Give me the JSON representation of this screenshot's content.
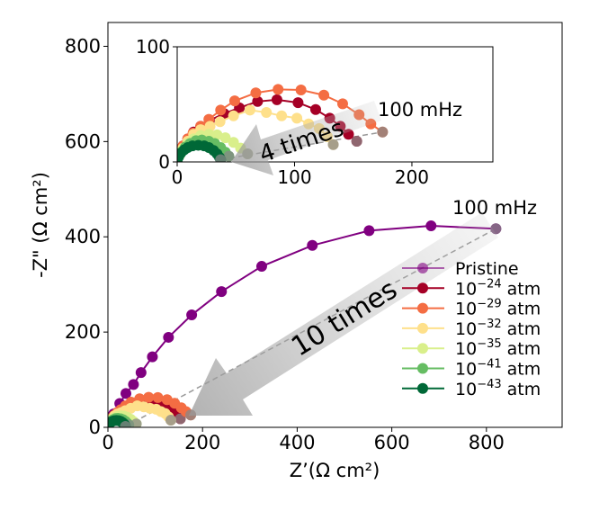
{
  "chart_data": [
    {
      "type": "line",
      "role": "main",
      "xlabel": "Z’(Ω cm²)",
      "ylabel": "-Z\" (Ω cm²)",
      "xlim": [
        0,
        960
      ],
      "ylim": [
        0,
        850
      ],
      "xticks": [
        "0",
        "200",
        "400",
        "600",
        "800"
      ],
      "yticks": [
        "0",
        "200",
        "400",
        "600",
        "800"
      ],
      "grid": false,
      "legend_placement": "lower-right",
      "annotations": {
        "frequency_label": "100 mHz",
        "arrow_label": "10 times"
      },
      "series_refs": [
        "pristine",
        "p24",
        "p29",
        "p32",
        "p35",
        "p41",
        "p43"
      ]
    },
    {
      "type": "line",
      "role": "inset",
      "xlim": [
        0,
        269
      ],
      "ylim": [
        0,
        100
      ],
      "xticks": [
        "0",
        "100",
        "200"
      ],
      "yticks": [
        "0",
        "100"
      ],
      "grid": false,
      "annotations": {
        "frequency_label": "100 mHz",
        "arrow_label": "4 times"
      },
      "series_refs": [
        "p24",
        "p29",
        "p32",
        "p35",
        "p41",
        "p43"
      ]
    }
  ],
  "series": {
    "pristine": {
      "name": "Pristine",
      "color": "#800080",
      "points": [
        [
          0,
          0
        ],
        [
          4,
          10
        ],
        [
          12,
          28
        ],
        [
          25,
          50
        ],
        [
          38,
          71
        ],
        [
          54,
          90
        ],
        [
          70,
          115
        ],
        [
          94,
          148
        ],
        [
          128,
          189
        ],
        [
          177,
          236
        ],
        [
          240,
          285
        ],
        [
          325,
          338
        ],
        [
          432,
          382
        ],
        [
          552,
          413
        ],
        [
          683,
          423
        ],
        [
          820,
          417
        ]
      ]
    },
    "p24": {
      "name": "10",
      "sup": "−24",
      "unit": " atm",
      "color": "#a50026",
      "points": [
        [
          0,
          0
        ],
        [
          2,
          7
        ],
        [
          5,
          14
        ],
        [
          9,
          20
        ],
        [
          14,
          26
        ],
        [
          20,
          31
        ],
        [
          27.5,
          36
        ],
        [
          40,
          42
        ],
        [
          53,
          47
        ],
        [
          68.5,
          52.5
        ],
        [
          85,
          54
        ],
        [
          103,
          51.5
        ],
        [
          118,
          45.5
        ],
        [
          130,
          38
        ],
        [
          139,
          31
        ],
        [
          146,
          24
        ],
        [
          153,
          18
        ]
      ]
    },
    "p29": {
      "name": "10",
      "sup": "−29",
      "unit": " atm",
      "color": "#f46d43",
      "points": [
        [
          0,
          0
        ],
        [
          2,
          7
        ],
        [
          5,
          14
        ],
        [
          9,
          20
        ],
        [
          13.5,
          25
        ],
        [
          20,
          31
        ],
        [
          27,
          37
        ],
        [
          37,
          45
        ],
        [
          49,
          53
        ],
        [
          67,
          60
        ],
        [
          86,
          63
        ],
        [
          105.5,
          62.5
        ],
        [
          125,
          58
        ],
        [
          141,
          50.5
        ],
        [
          155,
          41
        ],
        [
          165,
          33
        ],
        [
          175,
          26
        ]
      ]
    },
    "p32": {
      "name": "10",
      "sup": "−32",
      "unit": " atm",
      "color": "#fee08b",
      "points": [
        [
          0,
          0
        ],
        [
          2,
          6
        ],
        [
          5,
          12
        ],
        [
          9,
          18
        ],
        [
          14,
          24
        ],
        [
          20,
          28
        ],
        [
          28,
          31
        ],
        [
          36.5,
          35
        ],
        [
          48,
          40
        ],
        [
          62,
          45
        ],
        [
          76,
          43
        ],
        [
          89,
          40
        ],
        [
          102,
          38
        ],
        [
          112,
          33
        ],
        [
          121,
          29
        ],
        [
          128,
          22
        ],
        [
          133,
          15
        ]
      ]
    },
    "p35": {
      "name": "10",
      "sup": "−35",
      "unit": " atm",
      "color": "#d9ef8b",
      "points": [
        [
          0,
          0
        ],
        [
          2,
          6
        ],
        [
          5,
          11
        ],
        [
          9,
          16
        ],
        [
          14,
          20
        ],
        [
          20,
          23
        ],
        [
          27,
          24
        ],
        [
          34,
          23.5
        ],
        [
          41,
          21
        ],
        [
          48,
          17
        ],
        [
          54,
          12
        ],
        [
          60,
          7
        ]
      ]
    },
    "p41": {
      "name": "10",
      "sup": "−41",
      "unit": " atm",
      "color": "#66bd63",
      "points": [
        [
          0,
          0
        ],
        [
          1.5,
          5
        ],
        [
          4,
          9
        ],
        [
          7,
          13
        ],
        [
          11,
          16
        ],
        [
          16,
          18.5
        ],
        [
          21,
          19
        ],
        [
          27,
          18
        ],
        [
          32,
          16
        ],
        [
          37,
          12.5
        ],
        [
          41,
          8.5
        ],
        [
          44,
          5
        ]
      ]
    },
    "p43": {
      "name": "10",
      "sup": "−43",
      "unit": " atm",
      "color": "#006837",
      "points": [
        [
          0,
          0
        ],
        [
          1,
          4
        ],
        [
          3,
          7.5
        ],
        [
          6,
          10.5
        ],
        [
          9,
          12.5
        ],
        [
          13,
          14
        ],
        [
          18,
          14.5
        ],
        [
          23,
          14
        ],
        [
          27,
          12.5
        ],
        [
          31,
          10
        ],
        [
          34,
          7
        ],
        [
          36,
          4
        ],
        [
          37,
          2
        ]
      ]
    }
  },
  "legend_order": [
    "pristine",
    "p24",
    "p29",
    "p32",
    "p35",
    "p41",
    "p43"
  ]
}
